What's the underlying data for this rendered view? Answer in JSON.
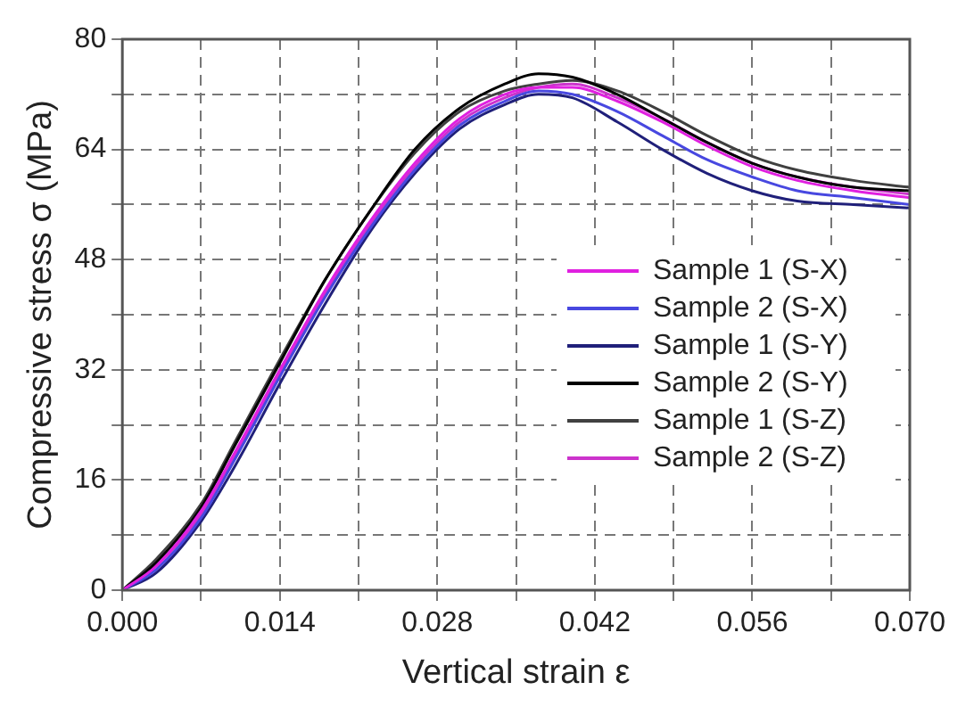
{
  "chart_data": {
    "type": "line",
    "xlabel": "Vertical strain ε",
    "ylabel": "Compressive stress σ (MPa)",
    "xlim": [
      0,
      0.07
    ],
    "ylim": [
      0,
      80
    ],
    "xticks": [
      {
        "value": 0,
        "label": "0.000"
      },
      {
        "value": 0.007,
        "label": null
      },
      {
        "value": 0.014,
        "label": "0.014"
      },
      {
        "value": 0.021,
        "label": null
      },
      {
        "value": 0.028,
        "label": "0.028"
      },
      {
        "value": 0.035,
        "label": null
      },
      {
        "value": 0.042,
        "label": "0.042"
      },
      {
        "value": 0.049,
        "label": null
      },
      {
        "value": 0.056,
        "label": "0.056"
      },
      {
        "value": 0.063,
        "label": null
      },
      {
        "value": 0.07,
        "label": "0.070"
      }
    ],
    "yticks": [
      0,
      {
        "value": 8,
        "label": null
      },
      16,
      {
        "value": 24,
        "label": null
      },
      32,
      {
        "value": 40,
        "label": null
      },
      48,
      {
        "value": 56,
        "label": null
      },
      64,
      {
        "value": 72,
        "label": null
      },
      80
    ],
    "grid": true,
    "legend": "right",
    "line_style": "solid",
    "marker": "none",
    "x": [
      0,
      0.003,
      0.007,
      0.01,
      0.014,
      0.018,
      0.022,
      0.026,
      0.03,
      0.034,
      0.037,
      0.04,
      0.044,
      0.048,
      0.052,
      0.056,
      0.06,
      0.065,
      0.07
    ],
    "series": [
      {
        "name": "Sample 1 (S-X)",
        "color": "#e020e0",
        "values": [
          0,
          3.5,
          11.5,
          20,
          32,
          43.5,
          53.5,
          62,
          68.5,
          72,
          73,
          73,
          71,
          68,
          64.5,
          61.5,
          59.5,
          58,
          57
        ]
      },
      {
        "name": "Sample 2 (S-X)",
        "color": "#4848e0",
        "values": [
          0,
          3,
          10.5,
          19,
          31,
          42.5,
          52.5,
          61,
          67.5,
          71,
          72.5,
          72,
          69.5,
          66,
          62.5,
          60,
          58,
          57,
          56
        ]
      },
      {
        "name": "Sample 1 (S-Y)",
        "color": "#20207a",
        "values": [
          0,
          2.5,
          10,
          18,
          30,
          41.5,
          52,
          60.5,
          67,
          70.5,
          72,
          71.5,
          68,
          64,
          60.5,
          58,
          56.5,
          56,
          55.5
        ]
      },
      {
        "name": "Sample 2 (S-Y)",
        "color": "#000000",
        "values": [
          0,
          4,
          12,
          21,
          33,
          45,
          55,
          64,
          70,
          73.5,
          75,
          74.5,
          72,
          68.5,
          65,
          62,
          60,
          58.5,
          58
        ]
      },
      {
        "name": "Sample 1 (S-Z)",
        "color": "#404040",
        "values": [
          0,
          4.5,
          12.5,
          21.5,
          33.5,
          45,
          55,
          63.5,
          69.5,
          72.5,
          73.5,
          74,
          72.5,
          69.5,
          66,
          63,
          61,
          59.5,
          58.5
        ]
      },
      {
        "name": "Sample 2 (S-Z)",
        "color": "#cc33cc",
        "values": [
          0,
          3.5,
          11,
          19.5,
          31.5,
          43,
          53,
          61.5,
          68,
          71.5,
          73,
          73.5,
          71.5,
          68.5,
          65,
          62,
          60,
          58.5,
          57.5
        ]
      }
    ]
  }
}
